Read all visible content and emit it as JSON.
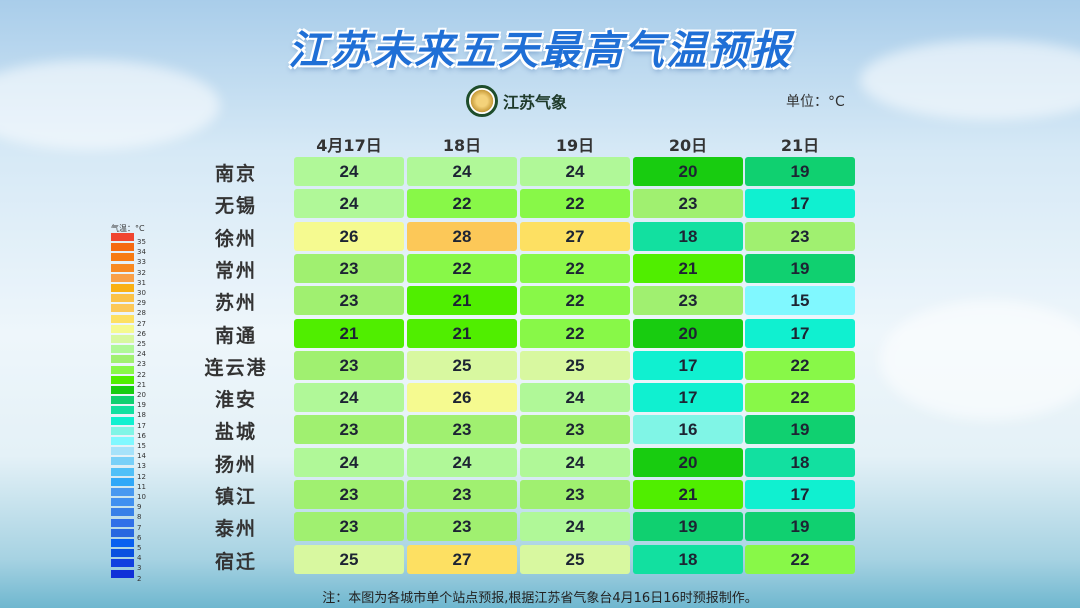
{
  "title": "江苏未来五天最高气温预报",
  "logo_text": "江苏气象",
  "unit_label": "单位：°C",
  "legend": {
    "title": "气温：°C",
    "values": [
      35,
      34,
      33,
      32,
      31,
      30,
      29,
      28,
      27,
      26,
      25,
      24,
      23,
      22,
      21,
      20,
      19,
      18,
      17,
      16,
      15,
      14,
      13,
      12,
      11,
      10,
      9,
      8,
      7,
      6,
      5,
      4,
      3,
      2
    ],
    "colors": {
      "35": "#f04530",
      "34": "#f56a12",
      "33": "#f77b14",
      "32": "#f88a22",
      "31": "#f9a048",
      "30": "#f9b014",
      "29": "#fbc248",
      "28": "#fcc858",
      "27": "#fde062",
      "26": "#f5fa90",
      "25": "#d8f8a0",
      "24": "#b0f898",
      "23": "#a0f070",
      "22": "#88f848",
      "21": "#50ee00",
      "20": "#18cc10",
      "19": "#10d070",
      "18": "#12e0a0",
      "17": "#10f0d0",
      "16": "#80f5e6",
      "15": "#80f8ff",
      "14": "#a6e2fa",
      "13": "#78d0f8",
      "12": "#50c0f8",
      "11": "#30a8f8",
      "10": "#4898f0",
      "9": "#4090f0",
      "8": "#3880e8",
      "7": "#3070e8",
      "6": "#2868e0",
      "5": "#0860f0",
      "4": "#0850e0",
      "3": "#1040e0",
      "2": "#1030d8"
    }
  },
  "columns": [
    "4月17日",
    "18日",
    "19日",
    "20日",
    "21日"
  ],
  "rows": [
    {
      "city": "南京",
      "temps": [
        24,
        24,
        24,
        20,
        19
      ]
    },
    {
      "city": "无锡",
      "temps": [
        24,
        22,
        22,
        23,
        17
      ]
    },
    {
      "city": "徐州",
      "temps": [
        26,
        28,
        27,
        18,
        23
      ]
    },
    {
      "city": "常州",
      "temps": [
        23,
        22,
        22,
        21,
        19
      ]
    },
    {
      "city": "苏州",
      "temps": [
        23,
        21,
        22,
        23,
        15
      ]
    },
    {
      "city": "南通",
      "temps": [
        21,
        21,
        22,
        20,
        17
      ]
    },
    {
      "city": "连云港",
      "temps": [
        23,
        25,
        25,
        17,
        22
      ]
    },
    {
      "city": "淮安",
      "temps": [
        24,
        26,
        24,
        17,
        22
      ]
    },
    {
      "city": "盐城",
      "temps": [
        23,
        23,
        23,
        16,
        19
      ]
    },
    {
      "city": "扬州",
      "temps": [
        24,
        24,
        24,
        20,
        18
      ]
    },
    {
      "city": "镇江",
      "temps": [
        23,
        23,
        23,
        21,
        17
      ]
    },
    {
      "city": "泰州",
      "temps": [
        23,
        23,
        24,
        19,
        19
      ]
    },
    {
      "city": "宿迁",
      "temps": [
        25,
        27,
        25,
        18,
        22
      ]
    }
  ],
  "note": "注：本图为各城市单个站点预报,根据江苏省气象台4月16日16时预报制作。"
}
